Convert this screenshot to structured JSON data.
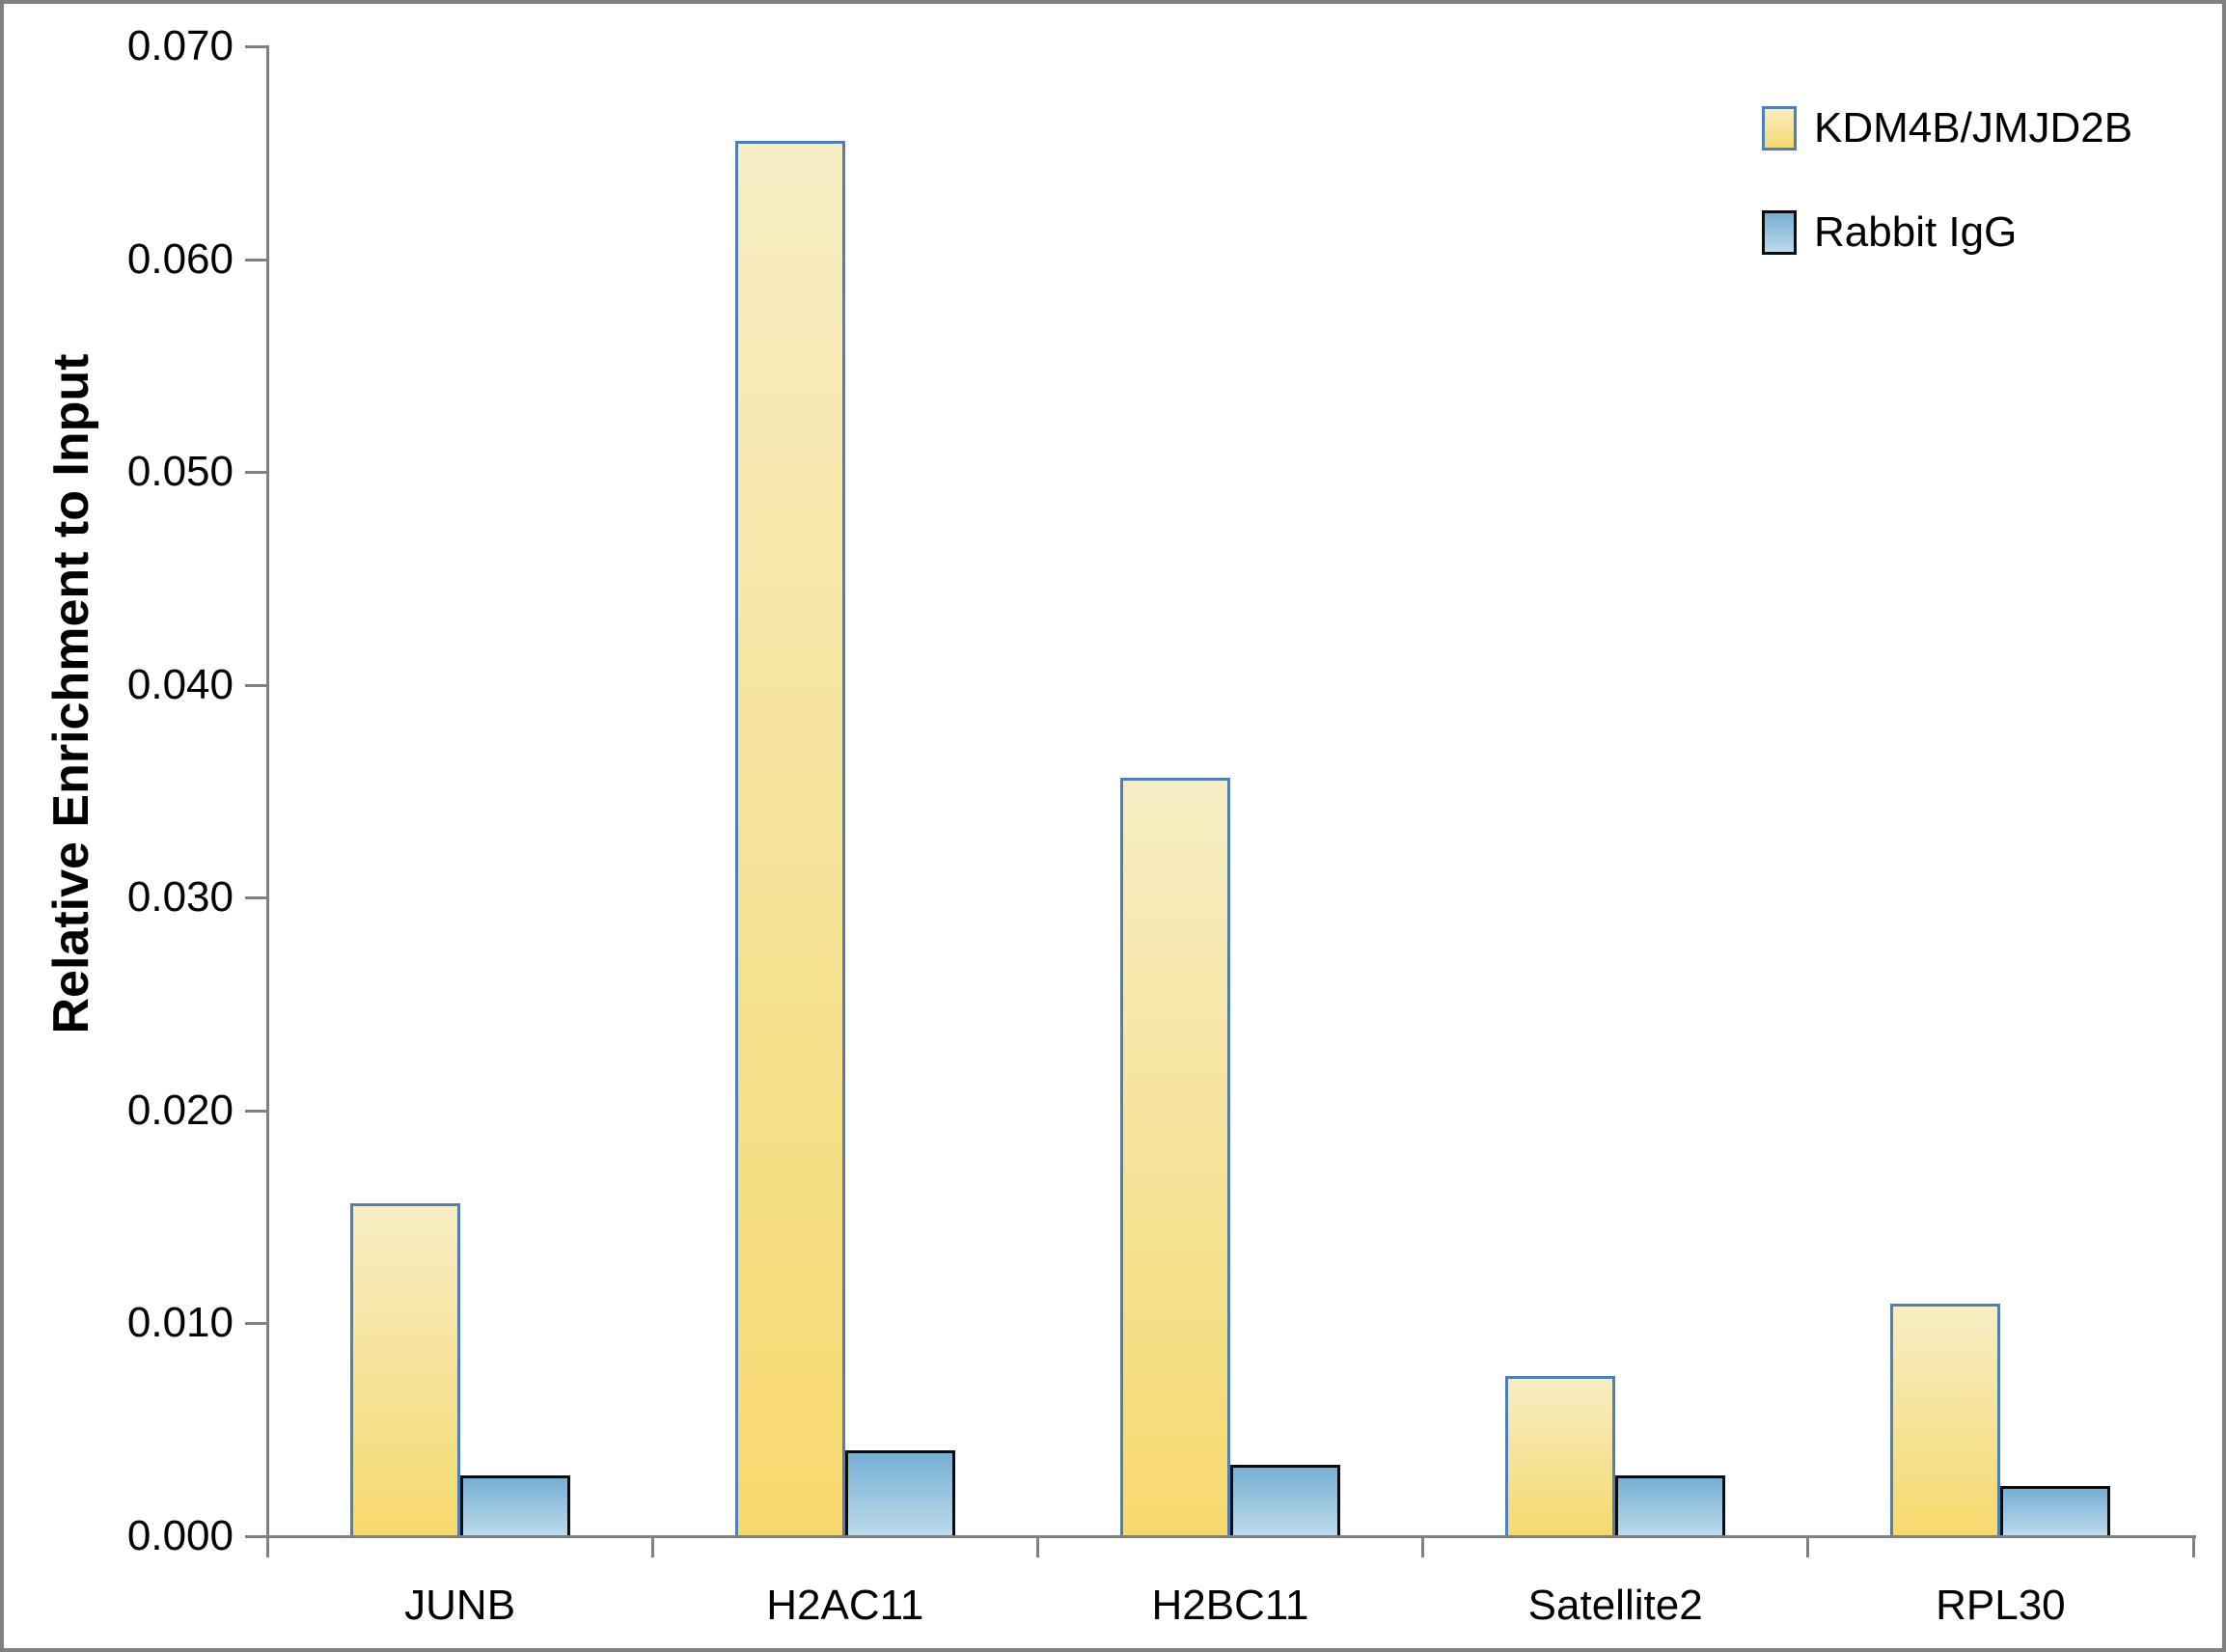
{
  "chart_data": {
    "type": "bar",
    "title": "",
    "xlabel": "",
    "ylabel": "Relative Enrichment to Input",
    "categories": [
      "JUNB",
      "H2AC11",
      "H2BC11",
      "Satellite2",
      "RPL30"
    ],
    "series": [
      {
        "name": "KDM4B/JMJD2B",
        "values": [
          0.0156,
          0.0655,
          0.0356,
          0.0075,
          0.0109
        ],
        "fill_top": "#F7EDC4",
        "fill_bottom": "#F6D96E",
        "border": "#4E80B7"
      },
      {
        "name": "Rabbit IgG",
        "values": [
          0.0028,
          0.004,
          0.0033,
          0.0028,
          0.0023
        ],
        "fill_top": "#76AFD3",
        "fill_bottom": "#BDDAEB",
        "border": "#0B0B0B"
      }
    ],
    "ylim": [
      0,
      0.07
    ],
    "ytick_step": 0.01,
    "ytick_decimals": 3,
    "ytick_labels": [
      "0.000",
      "0.010",
      "0.020",
      "0.030",
      "0.040",
      "0.050",
      "0.060",
      "0.070"
    ],
    "grid": false,
    "legend_position": "top-right",
    "axis_color": "#808080",
    "text_color": "#000000",
    "frame_color": "#7F7F7F"
  },
  "legend": {
    "items": [
      {
        "label": "KDM4B/JMJD2B"
      },
      {
        "label": "Rabbit IgG"
      }
    ]
  }
}
